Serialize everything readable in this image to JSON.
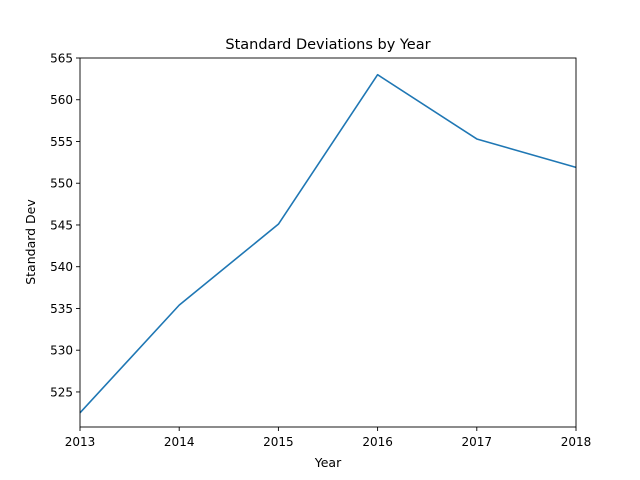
{
  "chart_data": {
    "type": "line",
    "title": "Standard Deviations by Year",
    "xlabel": "Year",
    "ylabel": "Standard Dev",
    "x": [
      2013,
      2014,
      2015,
      2016,
      2017,
      2018
    ],
    "series": [
      {
        "values": [
          522.5,
          535.4,
          545.1,
          563.0,
          555.3,
          551.9
        ],
        "color": "#1f77b4"
      }
    ],
    "xlim": [
      2013,
      2018
    ],
    "ylim": [
      520.8,
      565
    ],
    "xticks": [
      2013,
      2014,
      2015,
      2016,
      2017,
      2018
    ],
    "yticks": [
      525,
      530,
      535,
      540,
      545,
      550,
      555,
      560,
      565
    ],
    "grid": false
  }
}
